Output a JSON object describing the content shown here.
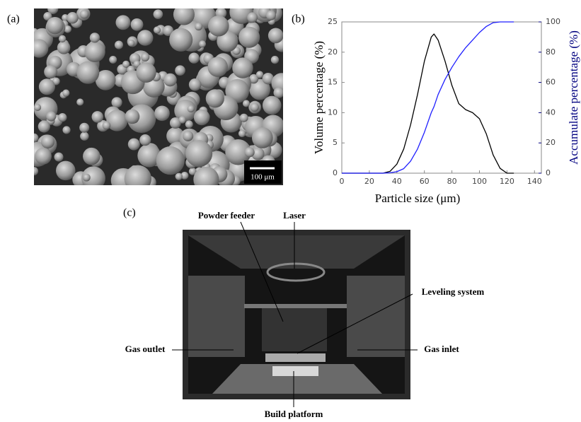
{
  "panel_labels": [
    "(a)",
    "(b)",
    "(c)"
  ],
  "sem": {
    "scale_bar": "100 μm"
  },
  "chart_data": {
    "type": "line",
    "x_label": "Particle size (μm)",
    "y_label": "Volume percentage (%)",
    "y2_label": "Accumulate percentage (%)",
    "x": [
      0,
      10,
      20,
      30,
      35,
      40,
      45,
      50,
      55,
      60,
      65,
      67,
      70,
      75,
      80,
      85,
      90,
      95,
      100,
      105,
      110,
      115,
      120,
      125
    ],
    "series": [
      {
        "color": "#000000",
        "values": [
          0,
          0,
          0,
          0,
          0.3,
          1.5,
          4,
          8,
          13,
          18.5,
          22.5,
          23,
          22,
          18.5,
          14.5,
          11.5,
          10.5,
          10,
          9,
          6.5,
          3,
          0.8,
          0,
          0
        ]
      },
      {
        "color": "#1f1fff",
        "axis": "y2",
        "values": [
          0,
          0,
          0,
          0,
          0.3,
          1,
          3,
          8,
          16,
          27,
          40,
          44,
          52,
          62,
          70,
          77,
          83,
          88,
          93,
          97,
          99.5,
          100,
          100,
          100
        ]
      }
    ],
    "xlim": [
      0,
      145
    ],
    "xticks": [
      0,
      20,
      40,
      60,
      80,
      100,
      120,
      140
    ],
    "ylim": [
      0,
      25
    ],
    "yticks": [
      0,
      5,
      10,
      15,
      20,
      25
    ],
    "y2lim": [
      0,
      100
    ],
    "y2ticks": [
      0,
      20,
      40,
      60,
      80,
      100
    ],
    "y2_color": "#000080"
  },
  "photo": {
    "labels": [
      "Powder feeder",
      "Laser",
      "Leveling system",
      "Gas outlet",
      "Gas inlet",
      "Build platform"
    ]
  }
}
